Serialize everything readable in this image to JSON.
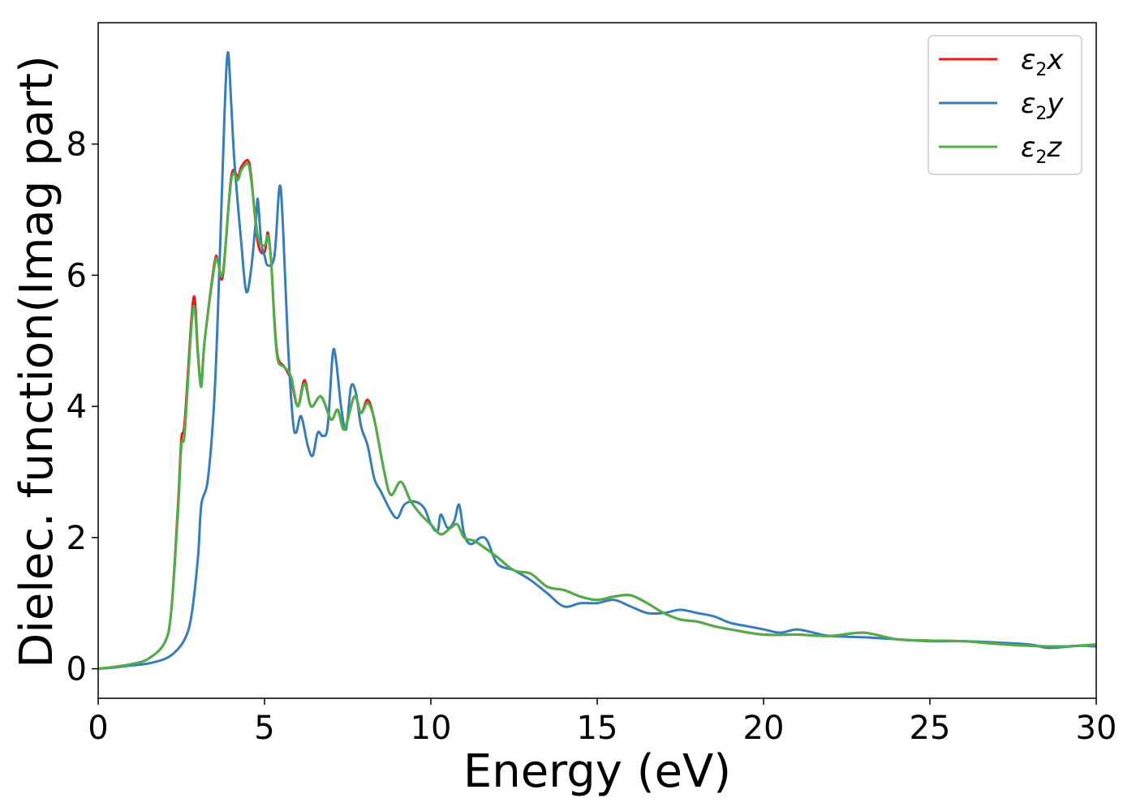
{
  "chart_data": {
    "type": "line",
    "xlabel": "Energy (eV)",
    "ylabel": "Dielec. function(Imag part)",
    "xlim": [
      0,
      30
    ],
    "ylim": [
      -0.45,
      9.85
    ],
    "x_ticks": [
      0,
      5,
      10,
      15,
      20,
      25,
      30
    ],
    "y_ticks": [
      0,
      2,
      4,
      6,
      8
    ],
    "legend": "top-right",
    "grid": false,
    "series": [
      {
        "name": "ε2x",
        "legend_base": "ε",
        "legend_sub": "2",
        "legend_var": "x",
        "color": "#e41a1c",
        "points": [
          [
            0,
            0
          ],
          [
            0.5,
            0.03
          ],
          [
            1.0,
            0.07
          ],
          [
            1.5,
            0.15
          ],
          [
            2.0,
            0.4
          ],
          [
            2.2,
            0.9
          ],
          [
            2.4,
            2.5
          ],
          [
            2.5,
            3.5
          ],
          [
            2.6,
            3.75
          ],
          [
            2.8,
            5.3
          ],
          [
            2.9,
            5.65
          ],
          [
            3.0,
            4.8
          ],
          [
            3.1,
            4.35
          ],
          [
            3.2,
            5.0
          ],
          [
            3.5,
            6.2
          ],
          [
            3.6,
            6.2
          ],
          [
            3.75,
            6.0
          ],
          [
            4.0,
            7.5
          ],
          [
            4.2,
            7.5
          ],
          [
            4.3,
            7.65
          ],
          [
            4.5,
            7.75
          ],
          [
            4.6,
            7.5
          ],
          [
            4.8,
            6.5
          ],
          [
            5.0,
            6.35
          ],
          [
            5.1,
            6.65
          ],
          [
            5.2,
            6.2
          ],
          [
            5.3,
            5.3
          ],
          [
            5.4,
            4.75
          ],
          [
            5.6,
            4.6
          ],
          [
            5.8,
            4.4
          ],
          [
            6.0,
            4.0
          ],
          [
            6.2,
            4.4
          ],
          [
            6.4,
            4.0
          ],
          [
            6.7,
            4.15
          ],
          [
            7.0,
            3.8
          ],
          [
            7.2,
            3.95
          ],
          [
            7.4,
            3.65
          ],
          [
            7.7,
            4.15
          ],
          [
            7.9,
            3.9
          ],
          [
            8.1,
            4.1
          ],
          [
            8.3,
            3.8
          ],
          [
            8.6,
            3.0
          ],
          [
            8.8,
            2.65
          ],
          [
            9.1,
            2.85
          ],
          [
            9.4,
            2.55
          ],
          [
            9.7,
            2.35
          ],
          [
            10.0,
            2.2
          ],
          [
            10.3,
            2.05
          ],
          [
            10.6,
            2.15
          ],
          [
            10.8,
            2.2
          ],
          [
            11.0,
            2.0
          ],
          [
            11.3,
            1.95
          ],
          [
            11.6,
            1.85
          ],
          [
            12.0,
            1.7
          ],
          [
            12.5,
            1.5
          ],
          [
            13.0,
            1.45
          ],
          [
            13.5,
            1.25
          ],
          [
            14.0,
            1.2
          ],
          [
            14.5,
            1.1
          ],
          [
            15.0,
            1.05
          ],
          [
            15.5,
            1.1
          ],
          [
            16.0,
            1.12
          ],
          [
            16.5,
            1.0
          ],
          [
            17.0,
            0.85
          ],
          [
            17.5,
            0.75
          ],
          [
            18.0,
            0.72
          ],
          [
            18.5,
            0.65
          ],
          [
            19.0,
            0.6
          ],
          [
            20.0,
            0.52
          ],
          [
            21.0,
            0.52
          ],
          [
            22.0,
            0.5
          ],
          [
            23.0,
            0.55
          ],
          [
            24.0,
            0.45
          ],
          [
            25.0,
            0.43
          ],
          [
            26.0,
            0.42
          ],
          [
            27.0,
            0.38
          ],
          [
            28.0,
            0.35
          ],
          [
            29.0,
            0.34
          ],
          [
            30.0,
            0.37
          ]
        ]
      },
      {
        "name": "ε2y",
        "legend_base": "ε",
        "legend_sub": "2",
        "legend_var": "y",
        "color": "#377eb8",
        "points": [
          [
            0,
            0
          ],
          [
            0.5,
            0.02
          ],
          [
            1.0,
            0.05
          ],
          [
            1.5,
            0.08
          ],
          [
            2.0,
            0.15
          ],
          [
            2.3,
            0.25
          ],
          [
            2.6,
            0.45
          ],
          [
            2.8,
            0.8
          ],
          [
            3.0,
            1.7
          ],
          [
            3.1,
            2.5
          ],
          [
            3.3,
            2.9
          ],
          [
            3.5,
            4.2
          ],
          [
            3.65,
            6.2
          ],
          [
            3.8,
            8.5
          ],
          [
            3.9,
            9.4
          ],
          [
            4.0,
            8.6
          ],
          [
            4.1,
            7.7
          ],
          [
            4.3,
            6.5
          ],
          [
            4.45,
            5.75
          ],
          [
            4.6,
            6.1
          ],
          [
            4.75,
            6.9
          ],
          [
            4.8,
            7.15
          ],
          [
            4.9,
            6.5
          ],
          [
            5.0,
            6.3
          ],
          [
            5.1,
            6.15
          ],
          [
            5.3,
            6.3
          ],
          [
            5.45,
            7.35
          ],
          [
            5.55,
            6.8
          ],
          [
            5.7,
            5.0
          ],
          [
            5.85,
            3.8
          ],
          [
            5.95,
            3.6
          ],
          [
            6.1,
            3.85
          ],
          [
            6.3,
            3.4
          ],
          [
            6.45,
            3.25
          ],
          [
            6.6,
            3.6
          ],
          [
            6.75,
            3.55
          ],
          [
            6.9,
            3.7
          ],
          [
            7.05,
            4.8
          ],
          [
            7.15,
            4.7
          ],
          [
            7.3,
            4.0
          ],
          [
            7.45,
            3.65
          ],
          [
            7.6,
            4.3
          ],
          [
            7.75,
            4.2
          ],
          [
            7.9,
            3.7
          ],
          [
            8.1,
            3.4
          ],
          [
            8.3,
            2.9
          ],
          [
            8.5,
            2.7
          ],
          [
            8.8,
            2.4
          ],
          [
            9.0,
            2.3
          ],
          [
            9.2,
            2.5
          ],
          [
            9.5,
            2.55
          ],
          [
            9.8,
            2.45
          ],
          [
            10.0,
            2.2
          ],
          [
            10.2,
            2.1
          ],
          [
            10.3,
            2.35
          ],
          [
            10.5,
            2.15
          ],
          [
            10.7,
            2.25
          ],
          [
            10.85,
            2.5
          ],
          [
            11.0,
            2.05
          ],
          [
            11.2,
            1.9
          ],
          [
            11.5,
            2.0
          ],
          [
            11.7,
            1.95
          ],
          [
            12.0,
            1.6
          ],
          [
            12.5,
            1.5
          ],
          [
            13.0,
            1.35
          ],
          [
            13.5,
            1.15
          ],
          [
            14.0,
            0.95
          ],
          [
            14.5,
            1.0
          ],
          [
            15.0,
            1.0
          ],
          [
            15.5,
            1.05
          ],
          [
            16.0,
            0.95
          ],
          [
            16.5,
            0.85
          ],
          [
            17.0,
            0.85
          ],
          [
            17.5,
            0.9
          ],
          [
            18.0,
            0.85
          ],
          [
            18.5,
            0.8
          ],
          [
            19.0,
            0.7
          ],
          [
            19.5,
            0.65
          ],
          [
            20.0,
            0.6
          ],
          [
            20.5,
            0.55
          ],
          [
            21.0,
            0.6
          ],
          [
            21.5,
            0.55
          ],
          [
            22.0,
            0.5
          ],
          [
            23.0,
            0.48
          ],
          [
            24.0,
            0.45
          ],
          [
            25.0,
            0.42
          ],
          [
            26.0,
            0.42
          ],
          [
            27.0,
            0.4
          ],
          [
            28.0,
            0.37
          ],
          [
            28.5,
            0.32
          ],
          [
            29.0,
            0.33
          ],
          [
            29.5,
            0.35
          ],
          [
            30.0,
            0.34
          ]
        ]
      },
      {
        "name": "ε2z",
        "legend_base": "ε",
        "legend_sub": "2",
        "legend_var": "z",
        "color": "#4daf4a",
        "points": [
          [
            0,
            0
          ],
          [
            0.5,
            0.03
          ],
          [
            1.0,
            0.07
          ],
          [
            1.5,
            0.15
          ],
          [
            2.0,
            0.4
          ],
          [
            2.2,
            0.9
          ],
          [
            2.4,
            2.4
          ],
          [
            2.5,
            3.4
          ],
          [
            2.6,
            3.6
          ],
          [
            2.8,
            5.2
          ],
          [
            2.9,
            5.5
          ],
          [
            3.0,
            4.75
          ],
          [
            3.1,
            4.3
          ],
          [
            3.2,
            5.0
          ],
          [
            3.5,
            6.15
          ],
          [
            3.6,
            6.2
          ],
          [
            3.75,
            6.05
          ],
          [
            4.0,
            7.45
          ],
          [
            4.2,
            7.45
          ],
          [
            4.3,
            7.6
          ],
          [
            4.5,
            7.7
          ],
          [
            4.6,
            7.45
          ],
          [
            4.8,
            6.6
          ],
          [
            5.0,
            6.45
          ],
          [
            5.1,
            6.6
          ],
          [
            5.2,
            6.2
          ],
          [
            5.3,
            5.25
          ],
          [
            5.4,
            4.7
          ],
          [
            5.6,
            4.6
          ],
          [
            5.8,
            4.45
          ],
          [
            6.0,
            4.0
          ],
          [
            6.2,
            4.35
          ],
          [
            6.4,
            4.0
          ],
          [
            6.7,
            4.15
          ],
          [
            7.0,
            3.8
          ],
          [
            7.2,
            3.95
          ],
          [
            7.4,
            3.65
          ],
          [
            7.7,
            4.15
          ],
          [
            7.9,
            3.9
          ],
          [
            8.1,
            4.05
          ],
          [
            8.3,
            3.8
          ],
          [
            8.6,
            3.0
          ],
          [
            8.8,
            2.65
          ],
          [
            9.1,
            2.85
          ],
          [
            9.4,
            2.55
          ],
          [
            9.7,
            2.35
          ],
          [
            10.0,
            2.2
          ],
          [
            10.3,
            2.05
          ],
          [
            10.6,
            2.15
          ],
          [
            10.8,
            2.2
          ],
          [
            11.0,
            2.0
          ],
          [
            11.3,
            1.95
          ],
          [
            11.6,
            1.85
          ],
          [
            12.0,
            1.7
          ],
          [
            12.5,
            1.5
          ],
          [
            13.0,
            1.45
          ],
          [
            13.5,
            1.25
          ],
          [
            14.0,
            1.2
          ],
          [
            14.5,
            1.1
          ],
          [
            15.0,
            1.05
          ],
          [
            15.5,
            1.1
          ],
          [
            16.0,
            1.12
          ],
          [
            16.5,
            1.0
          ],
          [
            17.0,
            0.85
          ],
          [
            17.5,
            0.75
          ],
          [
            18.0,
            0.72
          ],
          [
            18.5,
            0.65
          ],
          [
            19.0,
            0.6
          ],
          [
            20.0,
            0.52
          ],
          [
            21.0,
            0.52
          ],
          [
            22.0,
            0.5
          ],
          [
            23.0,
            0.55
          ],
          [
            24.0,
            0.45
          ],
          [
            25.0,
            0.43
          ],
          [
            26.0,
            0.42
          ],
          [
            27.0,
            0.38
          ],
          [
            28.0,
            0.35
          ],
          [
            29.0,
            0.34
          ],
          [
            30.0,
            0.37
          ]
        ]
      }
    ]
  }
}
